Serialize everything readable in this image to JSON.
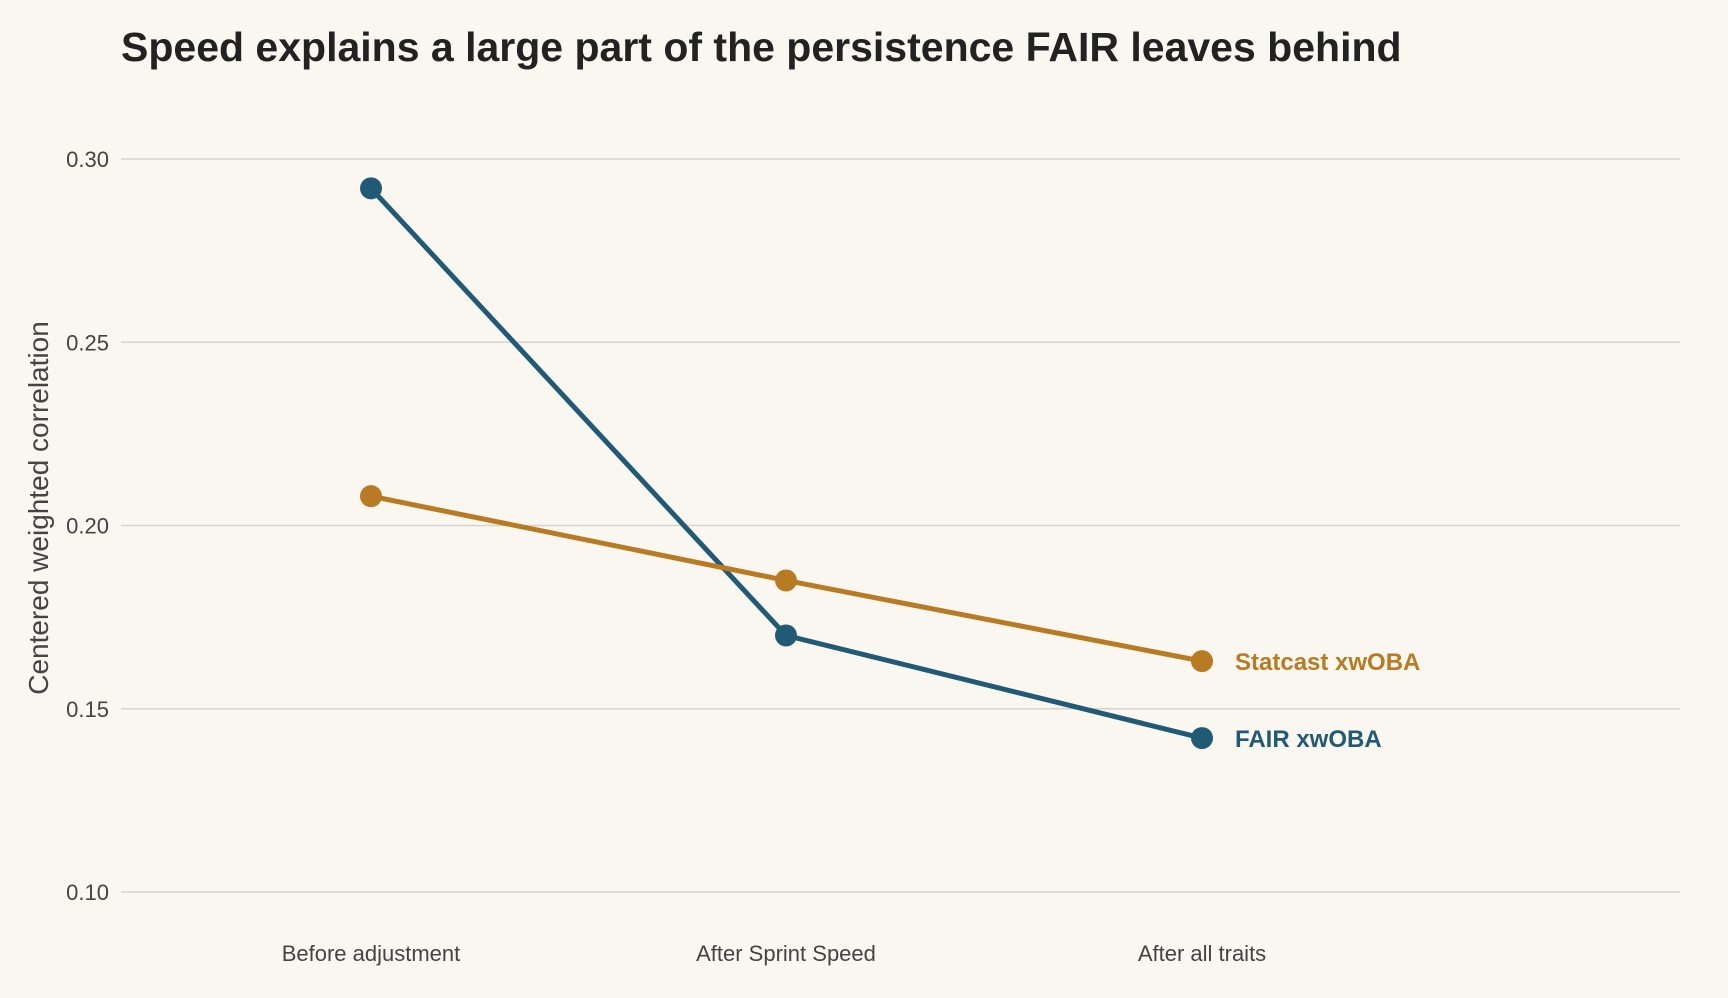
{
  "chart_data": {
    "type": "line",
    "title": "Speed explains a large part of the persistence FAIR leaves behind",
    "xlabel": "",
    "ylabel": "Centered weighted correlation",
    "categories": [
      "Before adjustment",
      "After Sprint Speed",
      "After all traits"
    ],
    "ylim": [
      0.1,
      0.3
    ],
    "yticks": [
      "0.10",
      "0.15",
      "0.20",
      "0.25",
      "0.30"
    ],
    "grid": "horizontal",
    "legend": "direct labels at line ends",
    "series": [
      {
        "name": "FAIR xwOBA",
        "color": "#215a75",
        "values": [
          0.292,
          0.17,
          0.142
        ]
      },
      {
        "name": "Statcast xwOBA",
        "color": "#b87a22",
        "values": [
          0.208,
          0.185,
          0.163
        ]
      }
    ]
  }
}
